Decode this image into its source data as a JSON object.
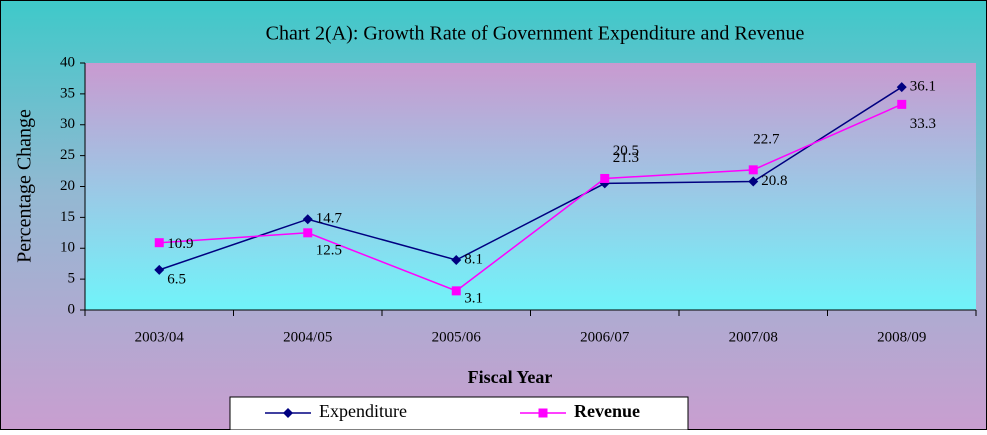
{
  "chart_data": {
    "type": "line",
    "title": "Chart 2(A): Growth Rate of Government Expenditure and Revenue",
    "x_label": "Fiscal Year",
    "y_label": "Percentage Change",
    "categories": [
      "2003/04",
      "2004/05",
      "2005/06",
      "2006/07",
      "2007/08",
      "2008/09"
    ],
    "series": [
      {
        "name": "Expenditure",
        "color": "#000080",
        "marker": "diamond",
        "values": [
          6.5,
          14.7,
          8.1,
          20.5,
          20.8,
          36.1
        ]
      },
      {
        "name": "Revenue",
        "color": "#ff00ff",
        "marker": "square",
        "values": [
          10.9,
          12.5,
          3.1,
          21.3,
          22.7,
          33.3
        ]
      }
    ],
    "ylim": [
      0,
      40
    ],
    "yticks": [
      0,
      5,
      10,
      15,
      20,
      25,
      30,
      35,
      40
    ],
    "legend": "bottom"
  }
}
